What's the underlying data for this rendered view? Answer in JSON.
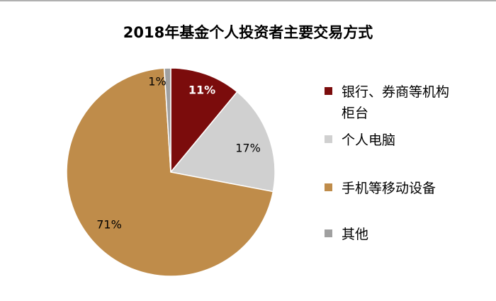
{
  "chart_data": {
    "type": "pie",
    "title": "2018年基金个人投资者主要交易方式",
    "unit": "%",
    "slices": [
      {
        "name": "银行、券商等机构柜台",
        "value": 11,
        "label": "11%",
        "color": "#7b0c0c",
        "label_color": "#ffffff"
      },
      {
        "name": "个人电脑",
        "value": 17,
        "label": "17%",
        "color": "#d0d0d0",
        "label_color": "#000000"
      },
      {
        "name": "手机等移动设备",
        "value": 71,
        "label": "71%",
        "color": "#bf8c4a",
        "label_color": "#000000"
      },
      {
        "name": "其他",
        "value": 1,
        "label": "1%",
        "color": "#a0a0a0",
        "label_color": "#000000"
      }
    ],
    "legend": {
      "position": "right",
      "items": [
        {
          "lines": [
            "银行、券商等机构",
            "柜台"
          ],
          "color": "#7b0c0c"
        },
        {
          "lines": [
            "个人电脑"
          ],
          "color": "#d0d0d0"
        },
        {
          "lines": [
            "手机等移动设备"
          ],
          "color": "#bf8c4a"
        },
        {
          "lines": [
            "其他"
          ],
          "color": "#a0a0a0"
        }
      ]
    }
  }
}
